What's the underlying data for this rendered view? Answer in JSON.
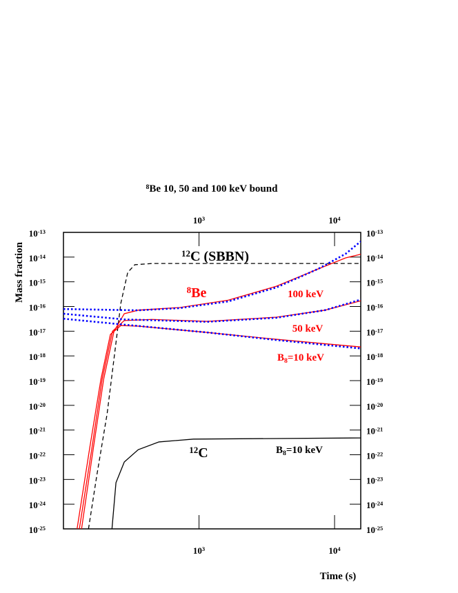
{
  "chart_data": {
    "type": "line",
    "title": "8Be 10, 50 and 100 keV bound",
    "y_label": "Mass fraction",
    "x_label": "Time (s)",
    "xscale": "log",
    "yscale": "log",
    "xlim": [
      100,
      15600
    ],
    "ylim": [
      1e-25,
      1e-13
    ],
    "xticks": [
      {
        "value": 1000,
        "label": "103"
      },
      {
        "value": 10000,
        "label": "104"
      }
    ],
    "yticks": [
      {
        "value": 1e-13,
        "label": "10-13"
      },
      {
        "value": 1e-14,
        "label": "10-14"
      },
      {
        "value": 1e-15,
        "label": "10-15"
      },
      {
        "value": 1e-16,
        "label": "10-16"
      },
      {
        "value": 1e-17,
        "label": "10-17"
      },
      {
        "value": 1e-18,
        "label": "10-18"
      },
      {
        "value": 1e-19,
        "label": "10-19"
      },
      {
        "value": 1e-20,
        "label": "10-20"
      },
      {
        "value": 1e-21,
        "label": "10-21"
      },
      {
        "value": 1e-22,
        "label": "10-22"
      },
      {
        "value": 1e-23,
        "label": "10-23"
      },
      {
        "value": 1e-24,
        "label": "10-24"
      },
      {
        "value": 1e-25,
        "label": "10-25"
      }
    ],
    "annotations": [
      "12C (SBBN)",
      "8Be",
      "100 keV",
      "50 keV",
      "B8=10 keV",
      "12C",
      "B8=10 keV"
    ],
    "series": [
      {
        "color": "#000000",
        "style": "dashed",
        "x": [
          153,
          176,
          210,
          236,
          265,
          298,
          336,
          450,
          15600
        ],
        "values": [
          1e-25,
          1.4e-23,
          4.6e-21,
          7.8e-19,
          1.35e-16,
          2.4e-15,
          4.9e-15,
          5.5e-15,
          5.5e-15
        ]
      },
      {
        "color": "#ff0000",
        "style": "solid",
        "x": [
          136,
          166,
          198,
          236,
          281,
          356,
          720,
          1640,
          3720,
          7550,
          12080,
          15600
        ],
        "values": [
          1e-25,
          1.8e-22,
          1.15e-19,
          1e-17,
          5.1e-17,
          7.1e-17,
          9.1e-17,
          1.8e-16,
          6.6e-16,
          3.3e-15,
          9.3e-15,
          1.3e-14
        ]
      },
      {
        "color": "#ff0000",
        "style": "solid",
        "x": [
          131,
          162,
          193,
          230,
          281,
          450,
          1150,
          3720,
          8490,
          15600
        ],
        "values": [
          1e-25,
          1.8e-22,
          1.15e-19,
          1e-17,
          2.7e-17,
          3e-17,
          2.5e-17,
          3.7e-17,
          7.1e-17,
          1.7e-16
        ]
      },
      {
        "color": "#ff0000",
        "style": "solid",
        "x": [
          126,
          156,
          189,
          222,
          265,
          356,
          1150,
          3720,
          15600
        ],
        "values": [
          1e-25,
          1.8e-22,
          1.15e-19,
          7.4e-18,
          1.7e-17,
          1.6e-17,
          8.9e-18,
          4.7e-18,
          2.3e-18
        ]
      },
      {
        "color": "#0000ff",
        "style": "dotted",
        "x": [
          100,
          356,
          720,
          1640,
          3720,
          7550,
          12080,
          15600
        ],
        "values": [
          7.9e-17,
          7e-17,
          8.6e-17,
          1.6e-16,
          5.9e-16,
          3.3e-15,
          1.36e-14,
          4.3e-14
        ]
      },
      {
        "color": "#0000ff",
        "style": "dotted",
        "x": [
          100,
          281,
          1150,
          3720,
          8490,
          15600
        ],
        "values": [
          5.1e-17,
          3e-17,
          2.4e-17,
          3.5e-17,
          7.1e-17,
          1.9e-16
        ]
      },
      {
        "color": "#0000ff",
        "style": "dotted",
        "x": [
          100,
          265,
          1150,
          3720,
          15600
        ],
        "values": [
          3.2e-17,
          1.9e-17,
          8.9e-18,
          4.4e-18,
          2e-18
        ]
      },
      {
        "color": "#000000",
        "style": "solid",
        "x": [
          228,
          244,
          281,
          356,
          506,
          910,
          15600
        ],
        "values": [
          1e-25,
          7.4e-24,
          5.1e-23,
          1.6e-22,
          3.3e-22,
          4.3e-22,
          4.8e-22
        ]
      }
    ]
  }
}
